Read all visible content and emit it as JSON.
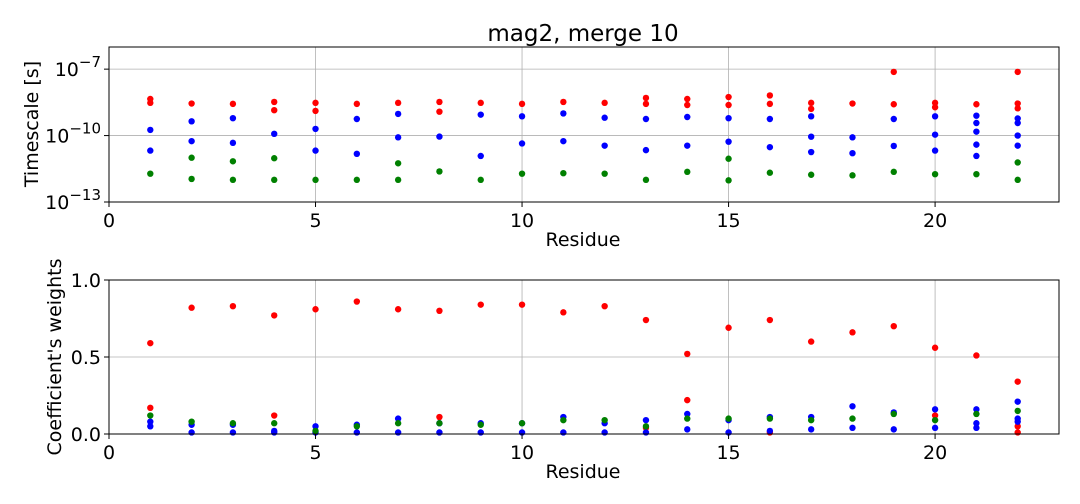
{
  "title": "mag2, merge 10",
  "colors": {
    "red": "#ff0000",
    "green": "#008000",
    "blue": "#0000ff"
  },
  "chart_data": [
    {
      "type": "scatter",
      "xlabel": "Residue",
      "ylabel": "Timescale [s]",
      "yscale": "log",
      "xlim": [
        0,
        23
      ],
      "ylim": [
        1e-13,
        1e-06
      ],
      "xticks": [
        0,
        5,
        10,
        15,
        20
      ],
      "yticks": [
        1e-13,
        1e-10,
        1e-07
      ],
      "ytick_labels": [
        {
          "base": "10",
          "exp": "−13"
        },
        {
          "base": "10",
          "exp": "−10"
        },
        {
          "base": "10",
          "exp": "−7"
        }
      ],
      "grid": true,
      "series": [
        {
          "color": "red",
          "x": [
            1,
            1,
            2,
            3,
            4,
            4,
            5,
            5,
            6,
            7,
            8,
            8,
            9,
            10,
            11,
            12,
            13,
            13,
            14,
            14,
            15,
            15,
            16,
            16,
            17,
            17,
            18,
            19,
            19,
            20,
            20,
            21,
            22,
            22,
            22
          ],
          "y": [
            3e-09,
            4.5e-09,
            2.8e-09,
            2.7e-09,
            3.3e-09,
            1.4e-09,
            3e-09,
            1.3e-09,
            2.7e-09,
            3e-09,
            3.3e-09,
            1.2e-09,
            3e-09,
            2.7e-09,
            3.3e-09,
            3e-09,
            5e-09,
            2.7e-09,
            4.5e-09,
            2.4e-09,
            5.5e-09,
            2.4e-09,
            6.5e-09,
            2.7e-09,
            3e-09,
            1.6e-09,
            2.8e-09,
            7.5e-08,
            2.6e-09,
            3e-09,
            1.9e-09,
            2.6e-09,
            7.5e-08,
            2.8e-09,
            1.7e-09
          ]
        },
        {
          "color": "blue",
          "x": [
            1,
            1,
            2,
            2,
            3,
            3,
            4,
            5,
            5,
            6,
            6,
            7,
            7,
            8,
            9,
            9,
            10,
            10,
            11,
            11,
            12,
            12,
            13,
            13,
            14,
            14,
            15,
            15,
            16,
            16,
            17,
            17,
            17,
            18,
            18,
            19,
            19,
            20,
            20,
            20,
            21,
            21,
            21,
            21,
            21,
            22,
            22,
            22,
            22
          ],
          "y": [
            1.8e-10,
            2.1e-11,
            4.4e-10,
            5.6e-11,
            6.1e-10,
            4.7e-11,
            1.2e-10,
            2e-10,
            2.1e-11,
            5.6e-10,
            1.5e-11,
            9.5e-10,
            8.3e-11,
            9e-11,
            8.8e-10,
            1.2e-11,
            7.4e-10,
            4.4e-11,
            1e-09,
            5.6e-11,
            6.4e-10,
            3.5e-11,
            5.6e-10,
            2.2e-11,
            6.9e-10,
            3.5e-11,
            6.1e-10,
            5.3e-11,
            5.6e-10,
            3e-11,
            7.4e-10,
            8.9e-11,
            1.8e-11,
            8.3e-11,
            1.6e-11,
            5.6e-10,
            3.4e-11,
            7.4e-10,
            1.1e-10,
            2.1e-11,
            7.9e-10,
            3.7e-10,
            1.5e-10,
            3.9e-11,
            1.2e-11,
            3.7e-10,
            1e-10,
            3.5e-11,
            5.9e-10
          ]
        },
        {
          "color": "green",
          "x": [
            1,
            2,
            2,
            3,
            3,
            4,
            4,
            5,
            6,
            7,
            7,
            8,
            9,
            10,
            11,
            12,
            13,
            14,
            15,
            15,
            16,
            17,
            18,
            19,
            20,
            21,
            22,
            22
          ],
          "y": [
            1.9e-12,
            1.1e-12,
            1e-11,
            1e-12,
            6.9e-12,
            1e-12,
            9.5e-12,
            1e-12,
            1e-12,
            1e-12,
            5.6e-12,
            2.4e-12,
            1e-12,
            1.9e-12,
            2e-12,
            1.9e-12,
            1e-12,
            2.3e-12,
            9.5e-13,
            9e-12,
            2.1e-12,
            1.7e-12,
            1.6e-12,
            2.3e-12,
            1.8e-12,
            1.8e-12,
            1e-12,
            6.1e-12
          ]
        }
      ]
    },
    {
      "type": "scatter",
      "xlabel": "Residue",
      "ylabel": "Coefficient's weights",
      "xlim": [
        0,
        23
      ],
      "ylim": [
        0.0,
        1.0
      ],
      "xticks": [
        0,
        5,
        10,
        15,
        20
      ],
      "yticks": [
        0.0,
        0.5,
        1.0
      ],
      "ytick_labels": [
        "0.0",
        "0.5",
        "1.0"
      ],
      "grid": true,
      "series": [
        {
          "color": "red",
          "x": [
            1,
            1,
            2,
            3,
            4,
            4,
            5,
            6,
            7,
            8,
            8,
            9,
            10,
            11,
            12,
            13,
            13,
            14,
            14,
            15,
            16,
            16,
            17,
            18,
            19,
            20,
            20,
            21,
            22,
            22,
            22
          ],
          "y": [
            0.59,
            0.17,
            0.82,
            0.83,
            0.77,
            0.12,
            0.81,
            0.86,
            0.81,
            0.8,
            0.11,
            0.84,
            0.84,
            0.79,
            0.83,
            0.74,
            0.04,
            0.52,
            0.22,
            0.69,
            0.74,
            0.01,
            0.6,
            0.66,
            0.7,
            0.56,
            0.12,
            0.51,
            0.34,
            0.05,
            0.01
          ]
        },
        {
          "color": "blue",
          "x": [
            1,
            1,
            2,
            2,
            3,
            3,
            4,
            4,
            5,
            5,
            6,
            6,
            7,
            7,
            8,
            8,
            9,
            9,
            10,
            10,
            11,
            11,
            12,
            12,
            13,
            13,
            14,
            14,
            15,
            15,
            16,
            16,
            17,
            17,
            18,
            18,
            19,
            19,
            20,
            20,
            21,
            21,
            21,
            22,
            22,
            22
          ],
          "y": [
            0.08,
            0.05,
            0.06,
            0.01,
            0.06,
            0.01,
            0.02,
            0.01,
            0.05,
            0.01,
            0.06,
            0.01,
            0.1,
            0.01,
            0.07,
            0.01,
            0.07,
            0.01,
            0.07,
            0.01,
            0.11,
            0.01,
            0.07,
            0.01,
            0.09,
            0.01,
            0.13,
            0.03,
            0.09,
            0.01,
            0.11,
            0.02,
            0.11,
            0.03,
            0.18,
            0.04,
            0.14,
            0.03,
            0.16,
            0.04,
            0.16,
            0.07,
            0.04,
            0.21,
            0.1,
            0.08
          ]
        },
        {
          "color": "green",
          "x": [
            1,
            2,
            3,
            4,
            5,
            6,
            7,
            8,
            9,
            10,
            11,
            12,
            13,
            14,
            15,
            16,
            17,
            18,
            19,
            20,
            21,
            22
          ],
          "y": [
            0.12,
            0.08,
            0.07,
            0.07,
            0.02,
            0.05,
            0.07,
            0.07,
            0.06,
            0.07,
            0.09,
            0.09,
            0.05,
            0.1,
            0.1,
            0.1,
            0.09,
            0.1,
            0.13,
            0.09,
            0.13,
            0.15
          ]
        }
      ]
    }
  ]
}
